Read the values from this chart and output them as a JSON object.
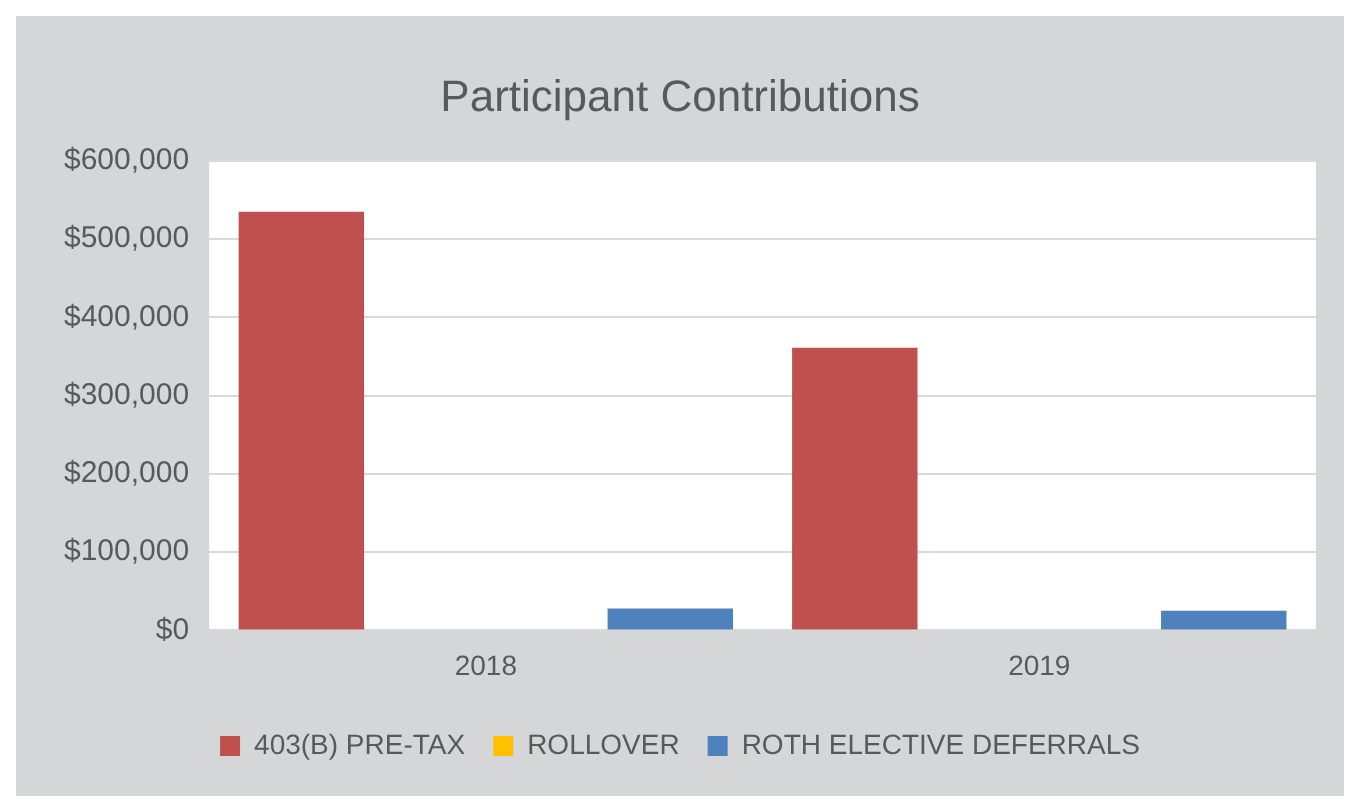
{
  "chart_data": {
    "type": "bar",
    "title": "Participant Contributions",
    "categories": [
      "2018",
      "2019"
    ],
    "series": [
      {
        "name": "403(B) PRE-TAX",
        "color": "#c0504d",
        "values": [
          535000,
          361000
        ]
      },
      {
        "name": "ROLLOVER",
        "color": "#ffc000",
        "values": [
          0,
          0
        ]
      },
      {
        "name": "ROTH ELECTIVE DEFERRALS",
        "color": "#4f81bd",
        "values": [
          28000,
          25000
        ]
      }
    ],
    "ylim": [
      0,
      600000
    ],
    "yticks": [
      {
        "value": 0,
        "label": "$0"
      },
      {
        "value": 100000,
        "label": "$100,000"
      },
      {
        "value": 200000,
        "label": "$200,000"
      },
      {
        "value": 300000,
        "label": "$300,000"
      },
      {
        "value": 400000,
        "label": "$400,000"
      },
      {
        "value": 500000,
        "label": "$500,000"
      },
      {
        "value": 600000,
        "label": "$600,000"
      }
    ],
    "grid": "y",
    "legend": "bottom"
  }
}
